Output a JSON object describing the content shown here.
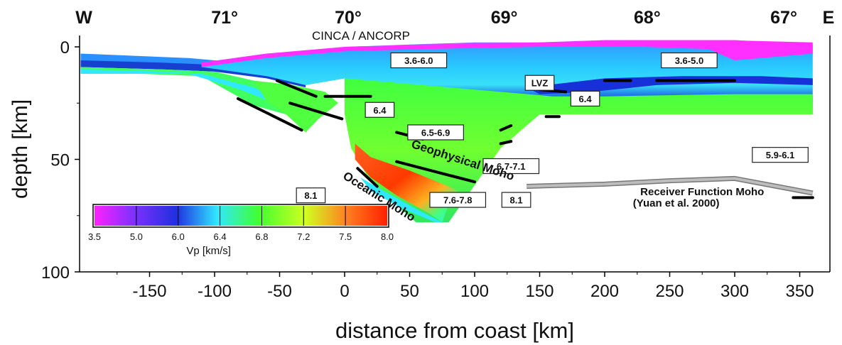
{
  "chart_data": {
    "type": "heatmap",
    "title": "CINCA / ANCORP",
    "xlabel": "distance from coast [km]",
    "ylabel": "depth [km]",
    "xlim": [
      -190,
      360
    ],
    "ylim": [
      100,
      -5
    ],
    "x_ticks": [
      -150,
      -100,
      -50,
      0,
      50,
      100,
      150,
      200,
      250,
      300,
      350
    ],
    "y_ticks": [
      0,
      50,
      100
    ],
    "top_labels": {
      "west": "W",
      "east": "E",
      "longitudes": [
        {
          "label": "71°",
          "x": -95
        },
        {
          "label": "70°",
          "x": 0
        },
        {
          "label": "69°",
          "x": 120
        },
        {
          "label": "68°",
          "x": 230
        },
        {
          "label": "67°",
          "x": 335
        }
      ]
    },
    "velocity_labels": [
      {
        "text": "3.6-6.0",
        "x": 57,
        "depth": 6
      },
      {
        "text": "3.6-5.0",
        "x": 265,
        "depth": 6
      },
      {
        "text": "LVZ",
        "x": 150,
        "depth": 16
      },
      {
        "text": "6.4",
        "x": 185,
        "depth": 23
      },
      {
        "text": "6.4",
        "x": 27,
        "depth": 28
      },
      {
        "text": "6.5-6.9",
        "x": 70,
        "depth": 38
      },
      {
        "text": "6.7-7.1",
        "x": 128,
        "depth": 53
      },
      {
        "text": "5.9-6.1",
        "x": 335,
        "depth": 48
      },
      {
        "text": "8.1",
        "x": -26,
        "depth": 66
      },
      {
        "text": "7.6-7.8",
        "x": 87,
        "depth": 68
      },
      {
        "text": "8.1",
        "x": 132,
        "depth": 68
      }
    ],
    "annotations": [
      {
        "text": "Geophysical Moho",
        "x": 90,
        "depth": 52,
        "rotation": 18
      },
      {
        "text": "Oceanic Moho",
        "x": 25,
        "depth": 68,
        "rotation": 32
      },
      {
        "text": "Receiver Function Moho",
        "x": 275,
        "depth": 66
      },
      {
        "text": "(Yuan et al. 2000)",
        "x": 255,
        "depth": 71
      }
    ],
    "receiver_function_moho": {
      "x": [
        140,
        200,
        250,
        300,
        360
      ],
      "depth": [
        62,
        61,
        59.5,
        58.5,
        65
      ]
    },
    "colorbar": {
      "title": "Vp [km/s]",
      "ticks": [
        "3.5",
        "5.0",
        "6.0",
        "6.4",
        "6.8",
        "7.2",
        "7.5",
        "8.0"
      ],
      "colors": [
        "#ff22ff",
        "#2030e0",
        "#30e8ff",
        "#40ff30",
        "#d0ff20",
        "#ff4000"
      ]
    },
    "grid": false,
    "legend": "colorbar-lower-left"
  }
}
